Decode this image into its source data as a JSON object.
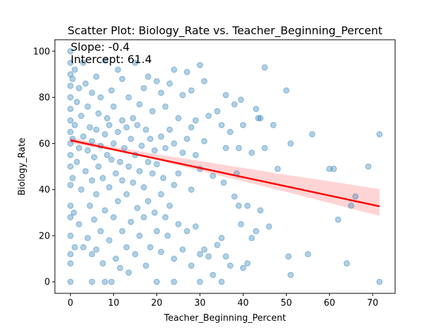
{
  "chart_data": {
    "type": "scatter",
    "title": "Scatter Plot: Biology_Rate vs. Teacher_Beginning_Percent",
    "xlabel": "Teacher_Beginning_Percent",
    "ylabel": "Biology_Rate",
    "xlim": [
      -3.6,
      75.2
    ],
    "ylim": [
      -5,
      105
    ],
    "xticks": [
      0,
      10,
      20,
      30,
      40,
      50,
      60,
      70
    ],
    "yticks": [
      0,
      20,
      40,
      60,
      80,
      100
    ],
    "grid": false,
    "point_color": "#1f77b4",
    "point_alpha": 0.35,
    "annotations": [
      "Slope: -0.4",
      "Intercept: 61.4"
    ],
    "regression": {
      "slope": -0.4,
      "intercept": 61.4,
      "x_range": [
        0,
        71.6
      ],
      "line_color": "#ff0000",
      "band_color": "#ffcccc",
      "band": [
        {
          "x": 0,
          "low": 60.2,
          "high": 62.6
        },
        {
          "x": 10,
          "low": 56.9,
          "high": 58.6
        },
        {
          "x": 20,
          "low": 52.8,
          "high": 55.3
        },
        {
          "x": 30,
          "low": 48.2,
          "high": 52.4
        },
        {
          "x": 40,
          "low": 43.6,
          "high": 49.4
        },
        {
          "x": 50,
          "low": 39.0,
          "high": 46.4
        },
        {
          "x": 60,
          "low": 34.2,
          "high": 43.6
        },
        {
          "x": 71.6,
          "low": 28.6,
          "high": 40.2
        }
      ]
    },
    "points": [
      [
        0,
        0
      ],
      [
        0,
        8
      ],
      [
        0,
        12
      ],
      [
        0,
        20
      ],
      [
        0,
        28
      ],
      [
        0,
        33
      ],
      [
        0,
        42
      ],
      [
        0,
        50
      ],
      [
        0,
        55
      ],
      [
        0,
        60
      ],
      [
        0,
        65
      ],
      [
        0,
        70
      ],
      [
        0,
        75
      ],
      [
        0,
        80
      ],
      [
        0,
        85
      ],
      [
        0,
        90
      ],
      [
        0,
        95
      ],
      [
        0,
        100
      ],
      [
        0.5,
        45
      ],
      [
        0.5,
        62
      ],
      [
        0.5,
        88
      ],
      [
        0.8,
        30
      ],
      [
        1,
        15
      ],
      [
        1,
        68
      ],
      [
        1,
        92
      ],
      [
        1.5,
        52
      ],
      [
        1.5,
        78
      ],
      [
        2,
        25
      ],
      [
        2,
        58
      ],
      [
        2,
        84
      ],
      [
        2.5,
        40
      ],
      [
        2.5,
        72
      ],
      [
        3,
        15
      ],
      [
        3,
        63
      ],
      [
        3,
        95
      ],
      [
        3.5,
        48
      ],
      [
        3.5,
        86
      ],
      [
        4,
        19
      ],
      [
        4,
        57
      ],
      [
        4,
        76
      ],
      [
        4.5,
        33
      ],
      [
        4.5,
        67
      ],
      [
        5,
        0
      ],
      [
        5,
        12
      ],
      [
        5,
        44
      ],
      [
        5,
        61
      ],
      [
        5,
        82
      ],
      [
        5.5,
        27
      ],
      [
        5.5,
        54
      ],
      [
        6,
        14
      ],
      [
        6,
        38
      ],
      [
        6,
        66
      ],
      [
        6,
        89
      ],
      [
        6.5,
        50
      ],
      [
        6.5,
        73
      ],
      [
        7,
        22
      ],
      [
        7,
        59
      ],
      [
        7,
        80
      ],
      [
        7.5,
        8
      ],
      [
        7.5,
        45
      ],
      [
        8,
        0
      ],
      [
        8,
        31
      ],
      [
        8,
        64
      ],
      [
        8,
        96
      ],
      [
        8.5,
        55
      ],
      [
        8.5,
        71
      ],
      [
        9,
        18
      ],
      [
        9,
        41
      ],
      [
        9,
        68
      ],
      [
        9.5,
        0
      ],
      [
        9.5,
        53
      ],
      [
        9.5,
        83
      ],
      [
        10,
        28
      ],
      [
        10,
        60
      ],
      [
        10,
        76
      ],
      [
        10.5,
        10
      ],
      [
        10.5,
        47
      ],
      [
        11,
        35
      ],
      [
        11,
        65
      ],
      [
        11,
        92
      ],
      [
        11.5,
        6
      ],
      [
        11.5,
        52
      ],
      [
        12,
        22
      ],
      [
        12,
        44
      ],
      [
        12,
        70
      ],
      [
        12,
        88
      ],
      [
        12.5,
        58
      ],
      [
        13,
        15
      ],
      [
        13,
        38
      ],
      [
        13,
        67
      ],
      [
        13.5,
        4
      ],
      [
        13.5,
        50
      ],
      [
        13.5,
        80
      ],
      [
        14,
        26
      ],
      [
        14,
        62
      ],
      [
        14.5,
        43
      ],
      [
        14.5,
        71
      ],
      [
        15,
        12
      ],
      [
        15,
        55
      ],
      [
        15,
        95
      ],
      [
        15.5,
        32
      ],
      [
        15.5,
        68
      ],
      [
        16,
        20
      ],
      [
        16,
        48
      ],
      [
        16,
        77
      ],
      [
        16.5,
        59
      ],
      [
        17,
        28
      ],
      [
        17,
        41
      ],
      [
        17,
        84
      ],
      [
        17.5,
        7
      ],
      [
        17.5,
        66
      ],
      [
        18,
        35
      ],
      [
        18,
        52
      ],
      [
        18,
        89
      ],
      [
        18.5,
        15
      ],
      [
        18.5,
        62
      ],
      [
        19,
        47
      ],
      [
        19,
        74
      ],
      [
        19.5,
        30
      ],
      [
        19.5,
        57
      ],
      [
        20,
        0
      ],
      [
        20,
        22
      ],
      [
        20,
        51
      ],
      [
        20,
        87
      ],
      [
        21,
        13
      ],
      [
        21,
        38
      ],
      [
        21,
        63
      ],
      [
        21,
        82
      ],
      [
        21.5,
        45
      ],
      [
        22,
        28
      ],
      [
        22,
        58
      ],
      [
        22,
        76
      ],
      [
        22.5,
        20
      ],
      [
        23,
        33
      ],
      [
        23,
        66
      ],
      [
        23,
        86
      ],
      [
        24,
        0
      ],
      [
        24,
        10
      ],
      [
        24,
        42
      ],
      [
        24,
        60
      ],
      [
        24,
        92
      ],
      [
        25,
        25
      ],
      [
        25,
        47
      ],
      [
        25,
        71
      ],
      [
        26,
        14
      ],
      [
        26,
        56
      ],
      [
        26,
        81
      ],
      [
        27,
        22
      ],
      [
        27,
        62
      ],
      [
        27,
        91
      ],
      [
        28,
        7
      ],
      [
        28,
        40
      ],
      [
        28,
        67
      ],
      [
        28,
        83
      ],
      [
        29,
        24
      ],
      [
        29,
        55
      ],
      [
        29,
        70
      ],
      [
        30,
        0
      ],
      [
        30,
        12
      ],
      [
        30,
        49
      ],
      [
        30,
        94
      ],
      [
        31,
        14
      ],
      [
        31,
        61
      ],
      [
        31,
        87
      ],
      [
        32,
        11
      ],
      [
        32,
        72
      ],
      [
        33,
        3
      ],
      [
        33,
        46
      ],
      [
        34,
        16
      ],
      [
        34,
        74
      ],
      [
        35,
        0
      ],
      [
        35,
        19
      ],
      [
        35,
        68
      ],
      [
        35.5,
        43
      ],
      [
        36,
        11
      ],
      [
        36,
        58
      ],
      [
        36,
        81
      ],
      [
        37,
        7
      ],
      [
        37,
        65
      ],
      [
        38,
        37
      ],
      [
        38,
        77
      ],
      [
        38.5,
        47
      ],
      [
        39,
        33
      ],
      [
        39,
        58
      ],
      [
        39.5,
        25
      ],
      [
        39.5,
        79
      ],
      [
        40,
        6
      ],
      [
        40,
        68
      ],
      [
        41,
        33
      ],
      [
        41,
        8
      ],
      [
        42,
        19
      ],
      [
        42,
        56
      ],
      [
        43,
        75
      ],
      [
        43,
        22
      ],
      [
        43.5,
        71
      ],
      [
        44,
        31
      ],
      [
        44,
        71
      ],
      [
        45,
        58
      ],
      [
        45,
        93
      ],
      [
        46,
        24
      ],
      [
        47,
        68
      ],
      [
        48,
        49
      ],
      [
        50,
        83
      ],
      [
        50.5,
        11
      ],
      [
        51,
        3
      ],
      [
        51,
        60
      ],
      [
        55,
        12
      ],
      [
        56,
        64
      ],
      [
        60,
        49
      ],
      [
        61,
        49
      ],
      [
        62,
        27
      ],
      [
        64,
        8
      ],
      [
        65,
        33
      ],
      [
        66,
        37
      ],
      [
        69,
        50
      ],
      [
        71.6,
        0
      ],
      [
        71.6,
        64
      ]
    ]
  }
}
